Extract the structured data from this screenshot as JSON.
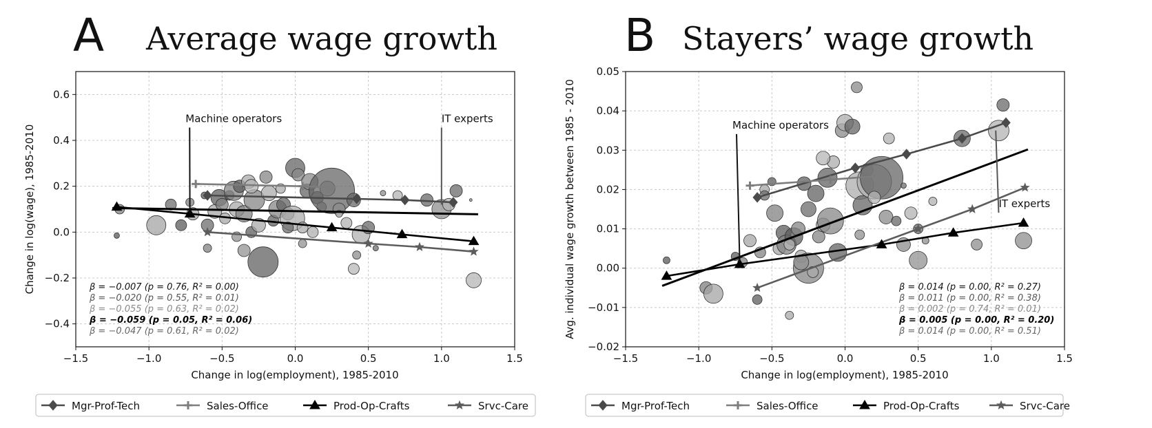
{
  "figure": {
    "palette": {
      "Mgr-Prof-Tech": "#4a4a4a",
      "Sales-Office": "#7d7d7d",
      "Prod-Op-Crafts": "#000000",
      "Srvc-Care": "#5c5c5c",
      "bubbles": "#8a8a8a"
    },
    "legend": [
      {
        "name": "Mgr-Prof-Tech",
        "marker": "diamond"
      },
      {
        "name": "Sales-Office",
        "marker": "plus"
      },
      {
        "name": "Prod-Op-Crafts",
        "marker": "triangle"
      },
      {
        "name": "Srvc-Care",
        "marker": "star"
      }
    ]
  },
  "chart_data": [
    {
      "type": "scatter",
      "panel_letter": "A",
      "title": "Average wage growth",
      "xlabel": "Change in log(employment), 1985-2010",
      "ylabel": "Change in log(wage), 1985-2010",
      "xlim": [
        -1.5,
        1.5
      ],
      "ylim": [
        -0.5,
        0.7
      ],
      "xticks": [
        -1.5,
        -1.0,
        -0.5,
        0.0,
        0.5,
        1.0,
        1.5
      ],
      "xtick_labels": [
        "−1.5",
        "−1.0",
        "−0.5",
        "0.0",
        "0.5",
        "1.0",
        "1.5"
      ],
      "yticks": [
        -0.4,
        -0.2,
        0.0,
        0.2,
        0.4,
        0.6
      ],
      "ytick_labels": [
        "−0.4",
        "−0.2",
        "0.0",
        "0.2",
        "0.4",
        "0.6"
      ],
      "grid": true,
      "annotations": [
        {
          "text": "Machine operators",
          "x": -0.75,
          "y": 0.48,
          "target": [
            -0.72,
            0.08
          ]
        },
        {
          "text": "IT experts",
          "x": 1.0,
          "y": 0.48,
          "target": [
            1.0,
            0.12
          ]
        }
      ],
      "stats": [
        "β = −0.007 (p = 0.76, R² = 0.00)",
        "β = −0.020 (p = 0.55, R² = 0.01)",
        "β = −0.055 (p = 0.63, R² = 0.02)",
        "β = −0.059 (p = 0.05, R² = 0.06)",
        "β = −0.047 (p = 0.61, R² = 0.02)"
      ],
      "overall_fit": {
        "x": [
          -1.25,
          1.25
        ],
        "y": [
          0.105,
          0.078
        ]
      },
      "series": [
        {
          "name": "Mgr-Prof-Tech",
          "x": [
            -0.6,
            0.42,
            0.75,
            1.08
          ],
          "y": [
            0.16,
            0.145,
            0.14,
            0.13
          ]
        },
        {
          "name": "Sales-Office",
          "x": [
            -0.68,
            0.05,
            0.25
          ],
          "y": [
            0.21,
            0.2,
            0.195
          ]
        },
        {
          "name": "Prod-Op-Crafts",
          "x": [
            -1.22,
            -0.72,
            0.25,
            0.73,
            1.22
          ],
          "y": [
            0.11,
            0.08,
            0.02,
            -0.01,
            -0.04
          ]
        },
        {
          "name": "Srvc-Care",
          "x": [
            -0.6,
            0.5,
            0.85,
            1.22
          ],
          "y": [
            0.0,
            -0.05,
            -0.065,
            -0.085
          ]
        }
      ],
      "bubbles": {
        "x": [
          -1.22,
          -1.2,
          -0.95,
          -0.78,
          -0.72,
          -0.7,
          -0.62,
          -0.6,
          -0.55,
          -0.52,
          -0.5,
          -0.48,
          -0.45,
          -0.42,
          -0.4,
          -0.38,
          -0.35,
          -0.32,
          -0.3,
          -0.28,
          -0.25,
          -0.22,
          -0.2,
          -0.18,
          -0.15,
          -0.12,
          -0.1,
          -0.08,
          -0.05,
          -0.02,
          0.0,
          0.02,
          0.05,
          0.08,
          0.1,
          0.12,
          0.15,
          0.18,
          0.22,
          0.25,
          0.3,
          0.35,
          0.4,
          0.42,
          0.45,
          0.5,
          0.6,
          0.7,
          0.9,
          1.0,
          1.05,
          1.1,
          1.2,
          1.22,
          -0.6,
          -0.4,
          -0.3,
          -0.05,
          0.05,
          0.3,
          -0.85,
          -0.35,
          0.4,
          0.55
        ],
        "y": [
          -0.015,
          0.1,
          0.03,
          0.03,
          0.13,
          0.08,
          0.16,
          -0.07,
          0.09,
          0.15,
          0.12,
          0.06,
          0.16,
          0.18,
          0.1,
          0.2,
          0.08,
          0.22,
          0.0,
          0.14,
          0.03,
          -0.13,
          0.24,
          0.17,
          0.05,
          0.1,
          0.19,
          0.12,
          0.08,
          0.06,
          0.28,
          0.25,
          0.02,
          0.18,
          0.22,
          0.0,
          0.15,
          0.11,
          0.19,
          0.18,
          0.1,
          0.04,
          0.14,
          -0.1,
          -0.01,
          0.02,
          0.17,
          0.16,
          0.14,
          0.1,
          0.12,
          0.18,
          0.14,
          -0.21,
          0.03,
          -0.02,
          0.2,
          0.02,
          -0.05,
          0.08,
          0.12,
          -0.08,
          -0.16,
          -0.07
        ],
        "r": [
          4,
          7,
          14,
          8,
          6,
          9,
          5,
          6,
          10,
          12,
          9,
          8,
          7,
          14,
          11,
          9,
          12,
          10,
          8,
          15,
          10,
          22,
          9,
          11,
          8,
          13,
          7,
          10,
          9,
          18,
          14,
          9,
          8,
          10,
          12,
          8,
          9,
          7,
          11,
          33,
          9,
          8,
          10,
          6,
          13,
          9,
          4,
          7,
          9,
          14,
          9,
          9,
          2,
          11,
          9,
          7,
          10,
          8,
          6,
          5,
          8,
          9,
          8,
          4
        ]
      }
    },
    {
      "type": "scatter",
      "panel_letter": "B",
      "title": "Stayers’ wage growth",
      "xlabel": "Change in log(employment), 1985-2010",
      "ylabel": "Avg. individual wage growth between 1985 - 2010",
      "xlim": [
        -1.5,
        1.5
      ],
      "ylim": [
        -0.02,
        0.05
      ],
      "xticks": [
        -1.5,
        -1.0,
        -0.5,
        0.0,
        0.5,
        1.0,
        1.5
      ],
      "xtick_labels": [
        "−1.5",
        "−1.0",
        "−0.5",
        "0.0",
        "0.5",
        "1.0",
        "1.5"
      ],
      "yticks": [
        -0.02,
        -0.01,
        0.0,
        0.01,
        0.02,
        0.03,
        0.04,
        0.05
      ],
      "ytick_labels": [
        "−0.02",
        "−0.01",
        "0.00",
        "0.01",
        "0.02",
        "0.03",
        "0.04",
        "0.05"
      ],
      "grid": true,
      "annotations": [
        {
          "text": "Machine operators",
          "x": -0.77,
          "y": 0.0355,
          "target": [
            -0.72,
            0.0015
          ]
        },
        {
          "text": "IT experts",
          "x": 1.05,
          "y": 0.0155,
          "target": [
            1.03,
            0.035
          ]
        }
      ],
      "stats": [
        "β = 0.014 (p = 0.00, R² = 0.27)",
        "β = 0.011 (p = 0.00, R² = 0.38)",
        "β = 0.002 (p = 0.74, R² = 0.01)",
        "β = 0.005 (p = 0.00, R² = 0.20)",
        "β = 0.014 (p = 0.00, R² = 0.51)"
      ],
      "overall_fit": {
        "x": [
          -1.25,
          1.25
        ],
        "y": [
          -0.0045,
          0.0302
        ]
      },
      "series": [
        {
          "name": "Mgr-Prof-Tech",
          "x": [
            -0.6,
            0.07,
            0.42,
            0.8,
            1.1
          ],
          "y": [
            0.018,
            0.0255,
            0.029,
            0.033,
            0.037
          ]
        },
        {
          "name": "Sales-Office",
          "x": [
            -0.65,
            -0.1,
            0.25
          ],
          "y": [
            0.021,
            0.0225,
            0.0235
          ]
        },
        {
          "name": "Prod-Op-Crafts",
          "x": [
            -1.22,
            -0.72,
            0.25,
            0.74,
            1.22
          ],
          "y": [
            -0.002,
            0.001,
            0.006,
            0.009,
            0.0115
          ]
        },
        {
          "name": "Srvc-Care",
          "x": [
            -0.6,
            0.5,
            0.87,
            1.23
          ],
          "y": [
            -0.005,
            0.01,
            0.015,
            0.0205
          ]
        }
      ],
      "bubbles": {
        "x": [
          -1.22,
          -0.95,
          -0.9,
          -0.75,
          -0.7,
          -0.65,
          -0.6,
          -0.58,
          -0.55,
          -0.5,
          -0.48,
          -0.45,
          -0.42,
          -0.4,
          -0.38,
          -0.35,
          -0.32,
          -0.3,
          -0.28,
          -0.25,
          -0.22,
          -0.2,
          -0.18,
          -0.15,
          -0.12,
          -0.1,
          -0.08,
          -0.05,
          -0.02,
          0.0,
          0.05,
          0.08,
          0.1,
          0.12,
          0.15,
          0.2,
          0.25,
          0.28,
          0.3,
          0.35,
          0.4,
          0.45,
          0.5,
          0.55,
          0.6,
          0.8,
          0.9,
          1.05,
          1.08,
          1.22,
          -0.38,
          -0.25,
          0.1,
          0.2,
          -0.55,
          -0.3,
          -0.15,
          0.4,
          0.5
        ],
        "y": [
          0.002,
          -0.005,
          -0.0065,
          0.003,
          0.0015,
          0.007,
          -0.008,
          0.004,
          0.02,
          0.022,
          0.014,
          0.005,
          0.009,
          0.006,
          -0.012,
          0.008,
          0.01,
          0.003,
          0.0215,
          0.0,
          -0.001,
          0.019,
          0.008,
          0.011,
          0.023,
          0.012,
          0.027,
          0.004,
          0.035,
          0.037,
          0.036,
          0.046,
          0.021,
          0.016,
          0.025,
          0.022,
          0.023,
          0.013,
          0.033,
          0.012,
          0.006,
          0.014,
          0.01,
          0.007,
          0.017,
          0.033,
          0.006,
          0.035,
          0.0415,
          0.007,
          0.006,
          0.015,
          0.0085,
          0.018,
          0.0185,
          0.0015,
          0.028,
          0.021,
          0.002
        ],
        "r": [
          5,
          9,
          14,
          6,
          7,
          9,
          7,
          8,
          7,
          6,
          12,
          9,
          11,
          14,
          6,
          13,
          10,
          9,
          10,
          22,
          8,
          12,
          9,
          10,
          14,
          19,
          9,
          13,
          10,
          12,
          11,
          8,
          20,
          14,
          9,
          25,
          31,
          10,
          8,
          7,
          10,
          9,
          7,
          5,
          6,
          12,
          8,
          15,
          9,
          12,
          8,
          11,
          7,
          9,
          7,
          11,
          10,
          4,
          13
        ]
      }
    }
  ]
}
